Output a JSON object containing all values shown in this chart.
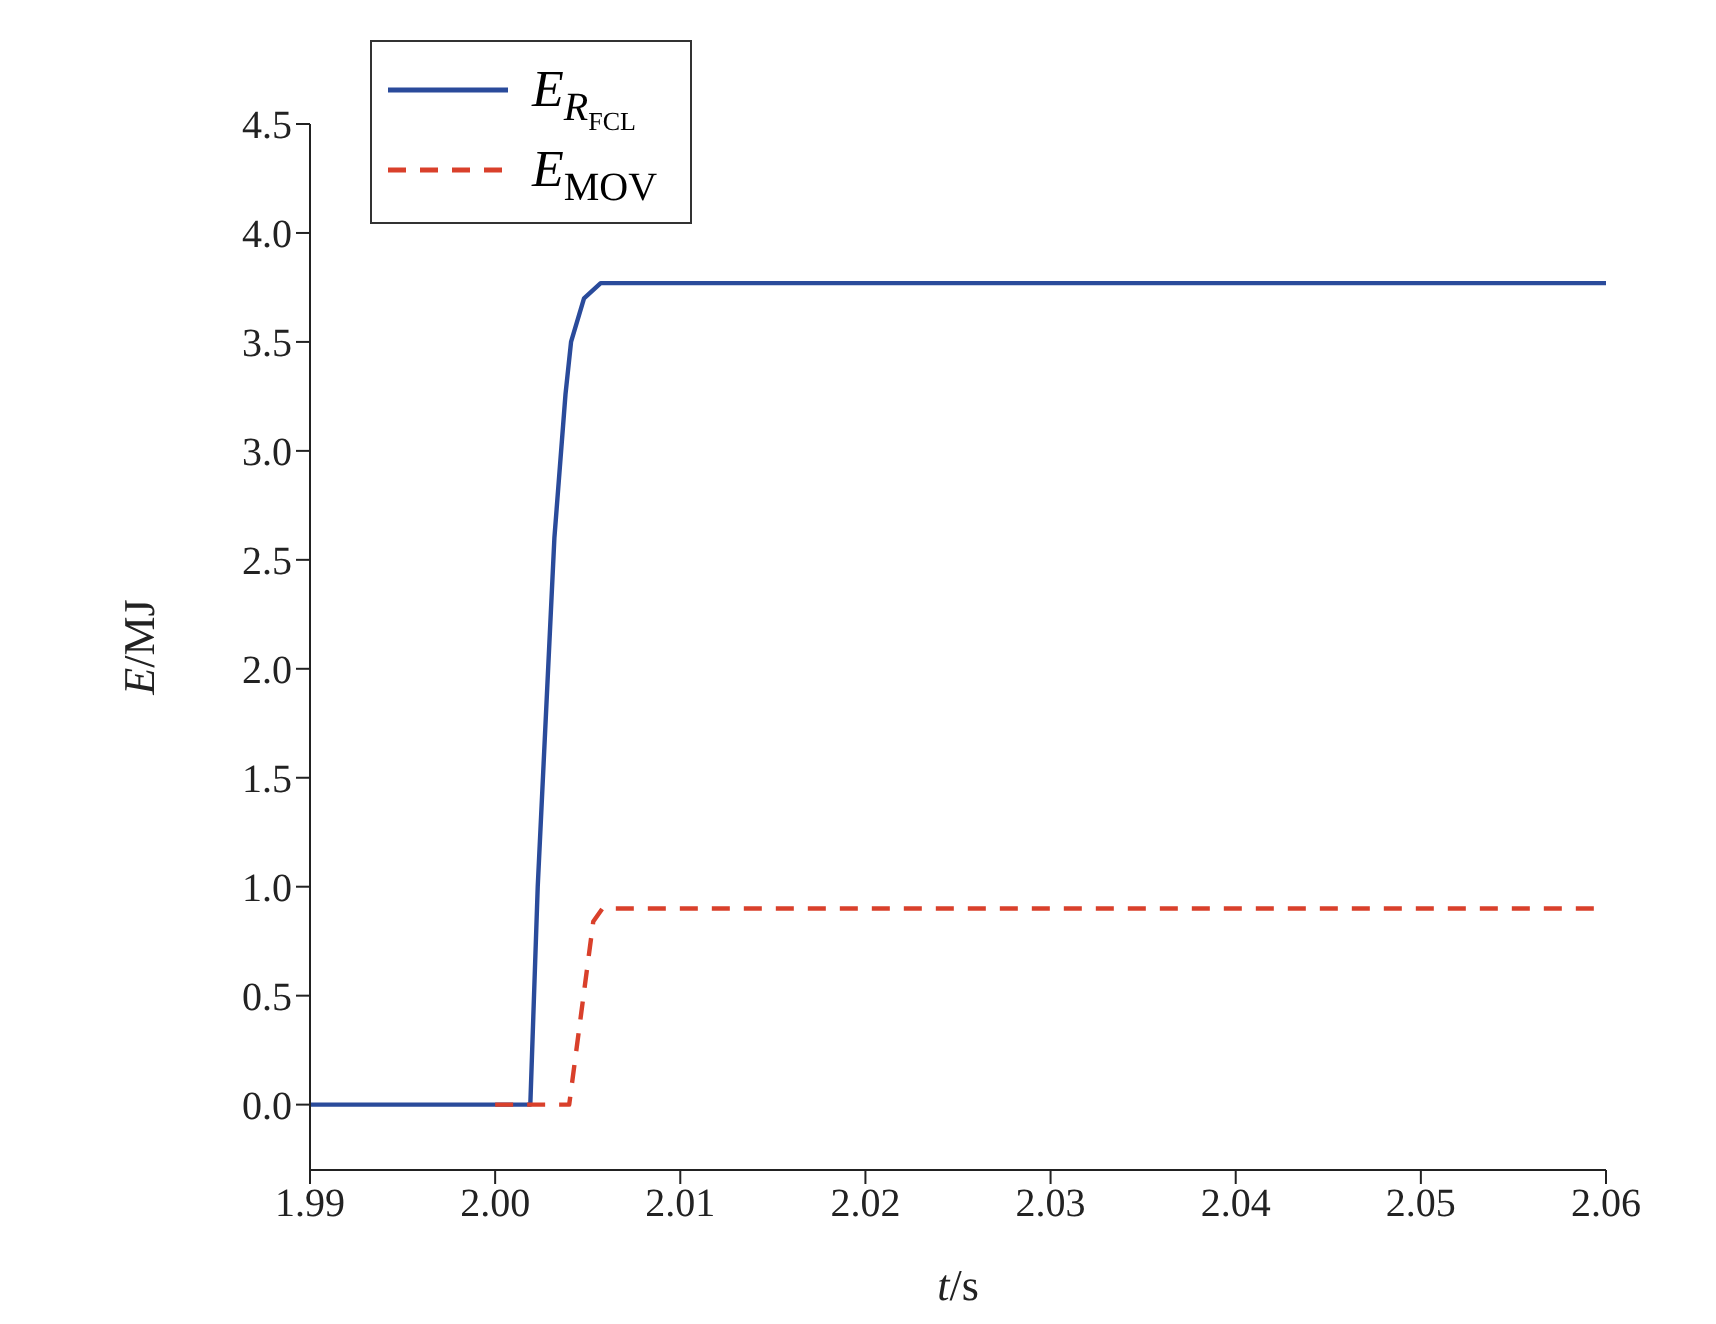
{
  "chart_data": {
    "type": "line",
    "xlabel": "t/s",
    "ylabel": "E/MJ",
    "xlim": [
      1.99,
      2.06
    ],
    "xticks": [
      1.99,
      {
        "value": 2,
        "label": "2.00"
      },
      2.01,
      2.02,
      2.03,
      2.04,
      2.05,
      2.06
    ],
    "ylim": [
      -0.3,
      4.5
    ],
    "yticks": [
      {
        "value": 0,
        "label": "0.0"
      },
      0.5,
      {
        "value": 1,
        "label": "1.0"
      },
      1.5,
      {
        "value": 2,
        "label": "2.0"
      },
      2.5,
      {
        "value": 3,
        "label": "3.0"
      },
      3.5,
      {
        "value": 4,
        "label": "4.0"
      },
      4.5
    ],
    "grid": false,
    "legend": "top left",
    "marker": "none",
    "series": [
      {
        "name": "E$_{R}$$_{FCL}$",
        "color": "#2a4b9b",
        "line_style": "solid",
        "x": [
          1.99,
          2.0019,
          2.0023,
          2.0032,
          2.0038,
          2.0041,
          2.0048,
          2.0057,
          2.06
        ],
        "values": [
          0,
          0,
          1.0,
          2.6,
          3.26,
          3.5,
          3.7,
          3.77,
          3.77
        ]
      },
      {
        "name": "E$_{MOV}$",
        "color": "#d9402b",
        "line_style": "dashed",
        "x": [
          2.0,
          2.004,
          2.0053,
          2.0058,
          2.06
        ],
        "values": [
          0,
          0,
          0.84,
          0.9,
          0.9
        ]
      }
    ]
  }
}
